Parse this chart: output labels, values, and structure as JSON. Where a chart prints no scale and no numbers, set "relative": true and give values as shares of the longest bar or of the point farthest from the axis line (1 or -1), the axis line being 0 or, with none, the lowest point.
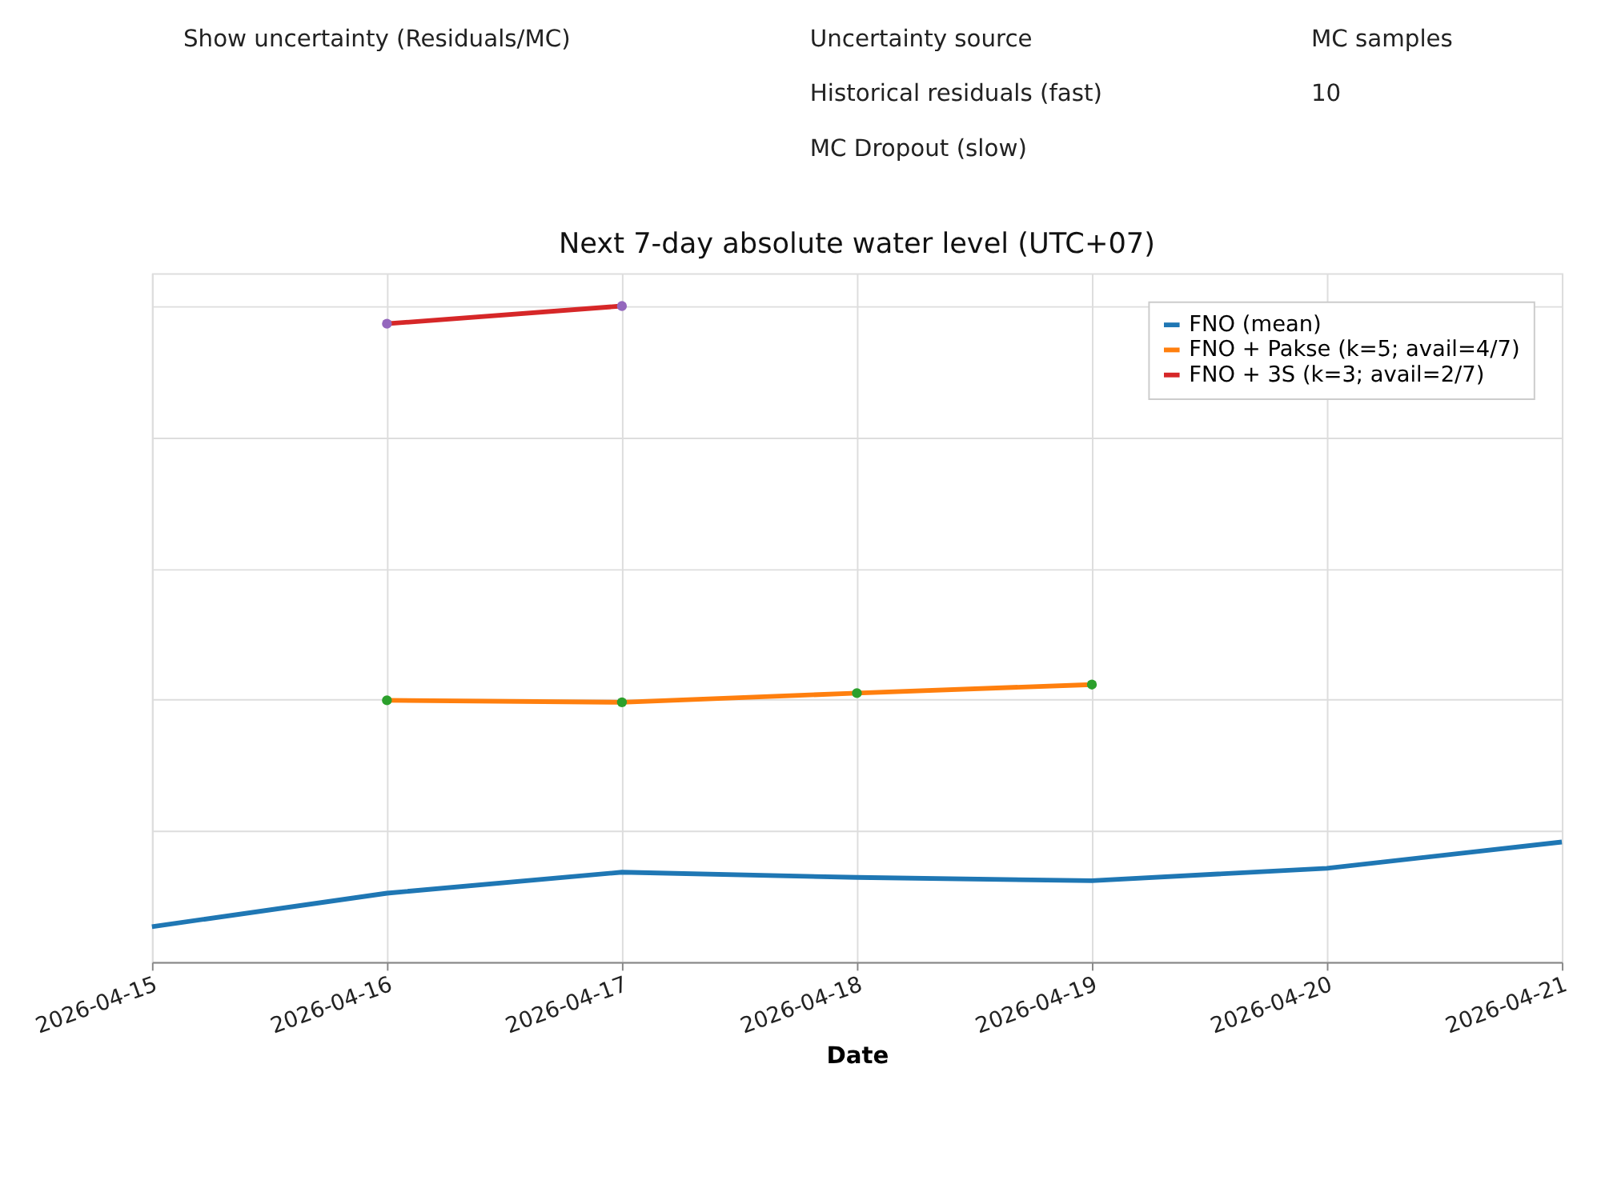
{
  "chart_data": {
    "type": "line",
    "title": "Next 7-day absolute water level (UTC+07)",
    "xlabel": "Date",
    "relative": true,
    "grid": true,
    "legend": "top right",
    "xlim": [
      "2026-04-15",
      "2026-04-21"
    ],
    "xticks": [
      "2026-04-15",
      "2026-04-16",
      "2026-04-17",
      "2026-04-18",
      "2026-04-19",
      "2026-04-20",
      "2026-04-21"
    ],
    "series": [
      {
        "name": "FNO (mean)",
        "color": "#1f77b4",
        "x": [
          "2026-04-15",
          "2026-04-16",
          "2026-04-17",
          "2026-04-18",
          "2026-04-19",
          "2026-04-20",
          "2026-04-21"
        ],
        "values": [
          0.054,
          0.105,
          0.137,
          0.129,
          0.124,
          0.143,
          0.183
        ]
      },
      {
        "name": "FNO + Pakse (k=5; avail=4/7)",
        "color": "#ff7f0e",
        "x": [
          "2026-04-16",
          "2026-04-17",
          "2026-04-18",
          "2026-04-19"
        ],
        "values": [
          0.399,
          0.396,
          0.41,
          0.423
        ]
      },
      {
        "name": "FNO + 3S (k=3; avail=2/7)",
        "color": "#d62728",
        "x": [
          "2026-04-16",
          "2026-04-17"
        ],
        "values": [
          0.973,
          1
        ]
      },
      {
        "color": "#2ca02c",
        "type": "scatter",
        "x": [
          "2026-04-16",
          "2026-04-17",
          "2026-04-18",
          "2026-04-19"
        ],
        "values": [
          0.399,
          0.396,
          0.41,
          0.423
        ]
      },
      {
        "color": "#9467bd",
        "type": "scatter",
        "x": [
          "2026-04-16",
          "2026-04-17"
        ],
        "values": [
          0.973,
          1
        ]
      }
    ],
    "annotations": [
      "Show uncertainty (Residuals/MC)",
      "Uncertainty source",
      "Historical residuals (fast)",
      "MC Dropout (slow)",
      "MC samples",
      "10"
    ]
  }
}
